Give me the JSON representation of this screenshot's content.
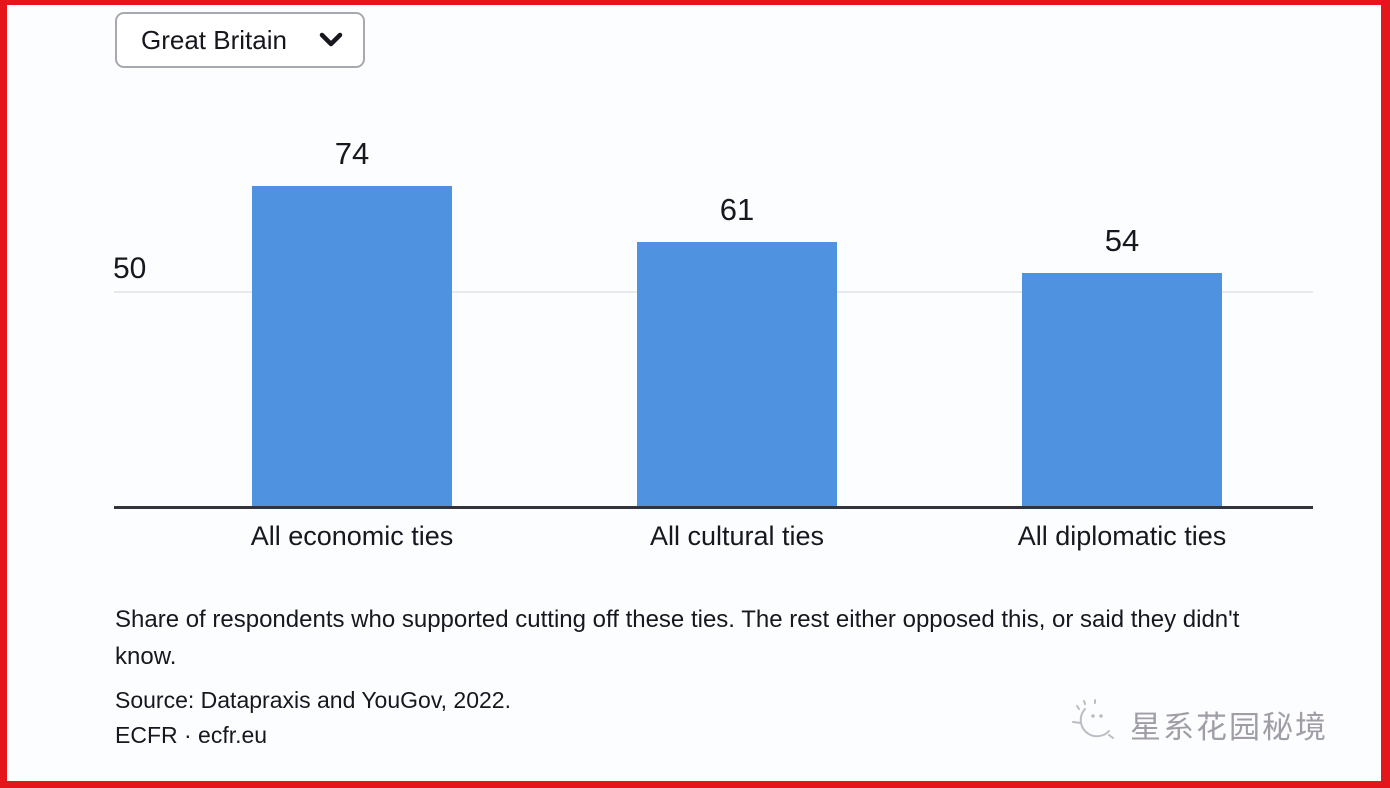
{
  "dropdown": {
    "selected_option": "Great Britain"
  },
  "chart_data": {
    "type": "bar",
    "categories": [
      "All economic ties",
      "All cultural ties",
      "All diplomatic ties"
    ],
    "values": [
      74,
      61,
      54
    ],
    "title": "",
    "xlabel": "",
    "ylabel": "",
    "y_baseline": 0,
    "y_gridlines": [
      50
    ],
    "y_gridline_label": "50",
    "legend": "none",
    "grid": "single horizontal gridline at 50",
    "bar_color": "#4e92e0"
  },
  "caption": "Share of respondents who supported cutting off these ties. The rest either opposed this, or said they didn't know.",
  "source": {
    "line1": "Source: Datapraxis and YouGov, 2022.",
    "line2": "ECFR · ecfr.eu"
  },
  "watermark": {
    "text": "星系花园秘境"
  },
  "colors": {
    "bar": "#4e92e0",
    "frame": "#e5161b",
    "axis": "#33333b",
    "gridline": "#e9e9ed",
    "text": "#17171f",
    "watermark": "#908d98"
  }
}
